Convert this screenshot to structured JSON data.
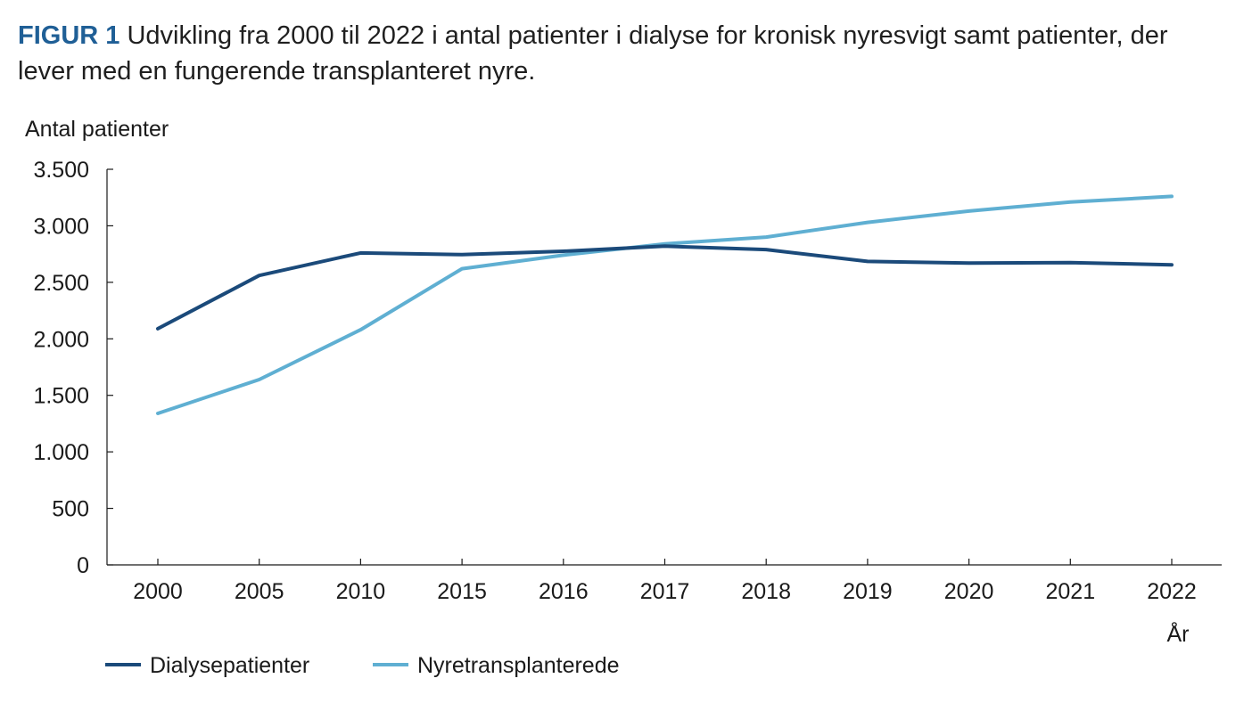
{
  "figure": {
    "label": "FIGUR 1",
    "title": "Udvikling fra 2000 til 2022 i antal patienter i dialyse for kronisk nyresvigt samt patienter, der lever med en fungerende transplanteret nyre."
  },
  "chart_data": {
    "type": "line",
    "ylabel": "Antal patienter",
    "xlabel": "År",
    "categories": [
      "2000",
      "2005",
      "2010",
      "2015",
      "2016",
      "2017",
      "2018",
      "2019",
      "2020",
      "2021",
      "2022"
    ],
    "ylim": [
      0,
      3500
    ],
    "yticks": [
      0,
      500,
      1000,
      1500,
      2000,
      2500,
      3000,
      3500
    ],
    "ytick_labels": [
      "0",
      "500",
      "1.000",
      "1.500",
      "2.000",
      "2.500",
      "3.000",
      "3.500"
    ],
    "grid": false,
    "legend_position": "bottom-left",
    "series": [
      {
        "name": "Dialysepatienter",
        "color": "#1b4a7a",
        "values": [
          2090,
          2560,
          2760,
          2745,
          2775,
          2820,
          2790,
          2685,
          2670,
          2675,
          2655
        ]
      },
      {
        "name": "Nyretransplanterede",
        "color": "#5fafd2",
        "values": [
          1340,
          1640,
          2080,
          2620,
          2740,
          2840,
          2900,
          3030,
          3130,
          3210,
          3260
        ]
      }
    ]
  }
}
